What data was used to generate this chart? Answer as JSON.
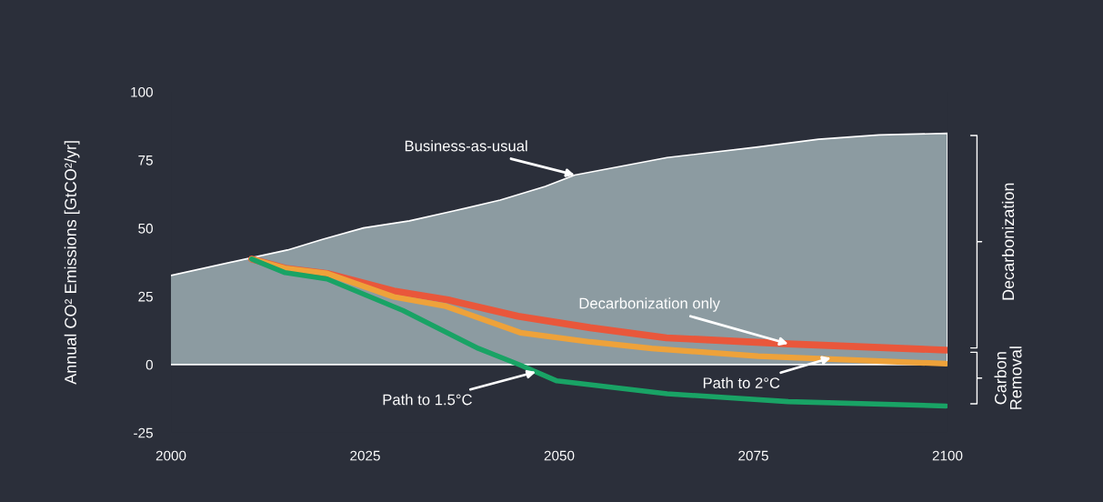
{
  "chart_data": {
    "type": "line",
    "ylabel": "Annual CO² Emissions [GtCO²/yr]",
    "xlim": [
      2000,
      2100
    ],
    "xticks": [
      2000,
      2025,
      2050,
      2075,
      2100
    ],
    "ylim": [
      -25,
      100
    ],
    "yticks": [
      -25,
      0,
      25,
      50,
      75,
      100
    ],
    "grid": false,
    "legend": false,
    "series": [
      {
        "type": "area",
        "color": "#8c9ba1",
        "x": [
          2000,
          2010.4,
          2015,
          2019.6,
          2024.8,
          2030.7,
          2036.5,
          2042.4,
          2048.2,
          2052,
          2063.9,
          2075.6,
          2083.4,
          2091.2,
          2100
        ],
        "values": [
          32.7,
          39.2,
          42,
          46,
          50.1,
          52.7,
          56.4,
          60.3,
          65.3,
          69.5,
          75.9,
          79.8,
          82.6,
          84.2,
          84.8
        ]
      },
      {
        "color": "#e9573b",
        "x": [
          2010.4,
          2014.7,
          2020.1,
          2028.7,
          2035.7,
          2044.7,
          2054,
          2063.8,
          2079.5,
          2099.8
        ],
        "values": [
          38.7,
          35.3,
          33.4,
          27,
          23.7,
          17.7,
          13.5,
          9.8,
          7.6,
          5.3
        ]
      },
      {
        "color": "#eea23a",
        "x": [
          2010.4,
          2014.7,
          2020.1,
          2028.7,
          2035.4,
          2045,
          2054,
          2061.9,
          2075.6,
          2099.8
        ],
        "values": [
          38.7,
          35.3,
          33.4,
          24.8,
          21.4,
          11.7,
          8.3,
          5.9,
          3.1,
          0.3
        ]
      },
      {
        "color": "#19a365",
        "x": [
          2010.4,
          2014.7,
          2020.1,
          2029.9,
          2039.6,
          2045,
          2049.7,
          2063.9,
          2079.5,
          2099.8
        ],
        "values": [
          38.7,
          33.7,
          31.4,
          19.8,
          5.9,
          -0.2,
          -6,
          -10.7,
          -13.6,
          -15.2
        ]
      }
    ],
    "ref_lines": [
      {
        "axis": "y",
        "value": 0,
        "color": "#ffffff"
      }
    ],
    "annotations": [
      {
        "text": "Business-as-usual",
        "x": 2052,
        "y": 69.5
      },
      {
        "text": "Decarbonization only",
        "x": 2079.5,
        "y": 7.6
      },
      {
        "text": "Path to 2°C",
        "x": 2085,
        "y": 2.5
      },
      {
        "text": "Path to 1.5°C",
        "x": 2047,
        "y": -2.7
      },
      "Decarbonization",
      "Carbon\nRemoval"
    ]
  }
}
